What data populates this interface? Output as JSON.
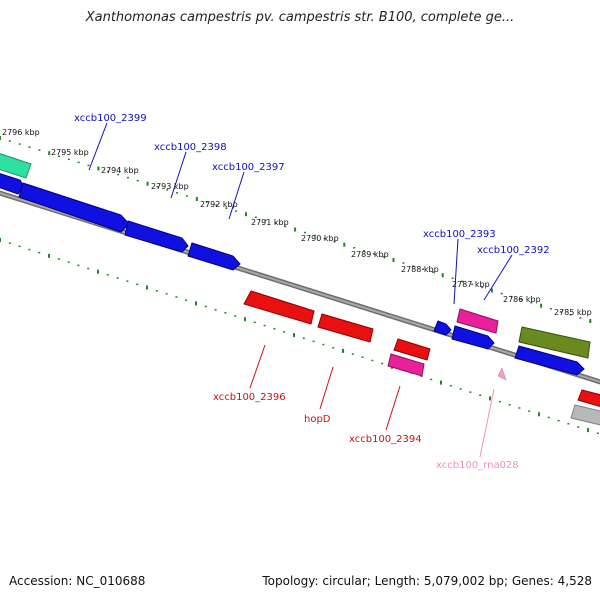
{
  "title": "Xanthomonas campestris pv. campestris str. B100, complete ge...",
  "footer": {
    "accession": "Accession: NC_010688",
    "topology": "Topology: circular; Length: 5,079,002 bp; Genes: 4,528"
  },
  "colors": {
    "forward_cds": "#1010e0",
    "reverse_cds": "#e81010",
    "pink_cds": "#e8209a",
    "olive_cds": "#6a8a20",
    "teal_cds": "#30e0a0",
    "grey_cds": "#b8b8b8",
    "rna": "#f0a0c8",
    "backbone": "#808080",
    "ticks": "#1a8a1a",
    "forward_label": "#1010c0",
    "reverse_label": "#d01010",
    "rna_label": "#f090c0"
  },
  "scale": {
    "ticks": [
      "2796 kbp",
      "2795 kbp",
      "2794 kbp",
      "2793 kbp",
      "2792 kbp",
      "2791 kbp",
      "2790 kbp",
      "2789 kbp",
      "2788 kbp",
      "2787 kbp",
      "2786 kbp",
      "2785 kbp"
    ]
  },
  "genes": {
    "forward_labels": [
      "xccb100_2399",
      "xccb100_2398",
      "xccb100_2397",
      "xccb100_2393",
      "xccb100_2392"
    ],
    "reverse_labels": [
      "xccb100_2396",
      "hopD",
      "xccb100_2394"
    ],
    "rna_label": "xccb100_rna028"
  }
}
